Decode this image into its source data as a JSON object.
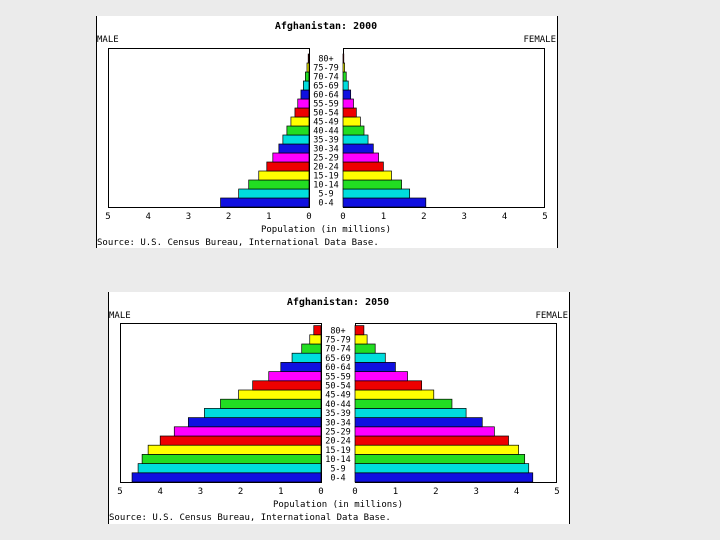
{
  "age_groups": [
    "0-4",
    "5-9",
    "10-14",
    "15-19",
    "20-24",
    "25-29",
    "30-34",
    "35-39",
    "40-44",
    "45-49",
    "50-54",
    "55-59",
    "60-64",
    "65-69",
    "70-74",
    "75-79",
    "80+"
  ],
  "male_label": "MALE",
  "female_label": "FEMALE",
  "axis_label": "Population (in millions)",
  "source": "Source: U.S. Census Bureau, International Data Base.",
  "ticks": [
    "5",
    "4",
    "3",
    "2",
    "1",
    "0"
  ],
  "palette": [
    "#1010e0",
    "#00dddd",
    "#22dd22",
    "#ffff00",
    "#ee0000",
    "#ff00ff"
  ],
  "chart_data": [
    {
      "type": "bar",
      "title": "Afghanistan: 2000",
      "categories": [
        "0-4",
        "5-9",
        "10-14",
        "15-19",
        "20-24",
        "25-29",
        "30-34",
        "35-39",
        "40-44",
        "45-49",
        "50-54",
        "55-59",
        "60-64",
        "65-69",
        "70-74",
        "75-79",
        "80+"
      ],
      "series": [
        {
          "name": "MALE",
          "values": [
            2.2,
            1.75,
            1.5,
            1.25,
            1.05,
            0.9,
            0.75,
            0.65,
            0.55,
            0.45,
            0.35,
            0.28,
            0.2,
            0.14,
            0.09,
            0.05,
            0.02
          ]
        },
        {
          "name": "FEMALE",
          "values": [
            2.05,
            1.65,
            1.45,
            1.2,
            1.0,
            0.88,
            0.75,
            0.62,
            0.52,
            0.43,
            0.33,
            0.26,
            0.19,
            0.13,
            0.08,
            0.04,
            0.02
          ]
        }
      ],
      "xlabel": "Population (in millions)",
      "xlim": [
        0,
        5
      ]
    },
    {
      "type": "bar",
      "title": "Afghanistan: 2050",
      "categories": [
        "0-4",
        "5-9",
        "10-14",
        "15-19",
        "20-24",
        "25-29",
        "30-34",
        "35-39",
        "40-44",
        "45-49",
        "50-54",
        "55-59",
        "60-64",
        "65-69",
        "70-74",
        "75-79",
        "80+"
      ],
      "series": [
        {
          "name": "MALE",
          "values": [
            4.7,
            4.55,
            4.45,
            4.3,
            4.0,
            3.65,
            3.3,
            2.9,
            2.5,
            2.05,
            1.7,
            1.3,
            1.0,
            0.72,
            0.48,
            0.28,
            0.18
          ]
        },
        {
          "name": "FEMALE",
          "values": [
            4.4,
            4.3,
            4.2,
            4.05,
            3.8,
            3.45,
            3.15,
            2.75,
            2.4,
            1.95,
            1.65,
            1.3,
            1.0,
            0.75,
            0.5,
            0.3,
            0.22
          ]
        }
      ],
      "xlabel": "Population (in millions)",
      "xlim": [
        0,
        5
      ]
    }
  ]
}
